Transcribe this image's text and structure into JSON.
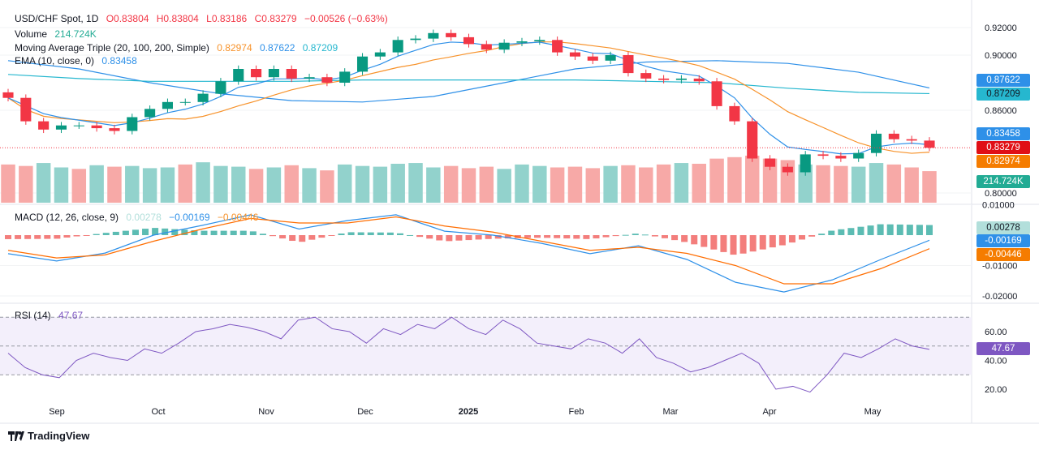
{
  "header": {
    "symbol": "USD/CHF Spot, 1D",
    "open": "O0.83804",
    "high": "H0.83804",
    "low": "L0.83186",
    "close": "C0.83279",
    "change": "−0.00526 (−0.63%)"
  },
  "legends": {
    "volume_label": "Volume",
    "volume_value": "214.724K",
    "ma_label": "Moving Average Triple (20, 100, 200, Simple)",
    "ma20_value": "0.82974",
    "ma100_value": "0.87622",
    "ma200_value": "0.87209",
    "ema_label": "EMA (10, close, 0)",
    "ema_value": "0.83458",
    "macd_label": "MACD (12, 26, close, 9)",
    "macd_hist_value": "0.00278",
    "macd_value": "−0.00169",
    "signal_value": "−0.00446",
    "rsi_label": "RSI (14)",
    "rsi_value": "47.67"
  },
  "tags": {
    "ma100": "0.87622",
    "ma200": "0.87209",
    "ema": "0.83458",
    "close": "0.83279",
    "ma20": "0.82974",
    "volume": "214.724K",
    "macd_hist": "0.00278",
    "macd": "-0.00169",
    "signal": "-0.00446",
    "rsi": "47.67"
  },
  "colors": {
    "up": "#089981",
    "down": "#f23645",
    "vol_up": "#92d2cc",
    "vol_down": "#f7a9a7",
    "ma20": "#f7922a",
    "ma100": "#2e90e8",
    "ma200": "#26b7cf",
    "ema": "#2e90e8",
    "macd": "#2962ff",
    "signal": "#ff6d00",
    "rsi": "#7e57c2",
    "rsi_band": "#f3effb"
  },
  "brand": "TradingView",
  "chart_data": [
    {
      "type": "candlestick",
      "title": "USD/CHF Spot, 1D",
      "x_ticks": [
        "Sep",
        "Oct",
        "Nov",
        "Dec",
        "2025",
        "Feb",
        "Mar",
        "Apr",
        "May"
      ],
      "y_ticks": [
        "0.92000",
        "0.90000",
        "0.86000",
        "0.80000"
      ],
      "ylim": [
        0.795,
        0.925
      ],
      "closes": [
        0.869,
        0.852,
        0.846,
        0.849,
        0.849,
        0.847,
        0.845,
        0.855,
        0.861,
        0.866,
        0.866,
        0.872,
        0.881,
        0.89,
        0.884,
        0.89,
        0.883,
        0.884,
        0.88,
        0.888,
        0.899,
        0.902,
        0.911,
        0.912,
        0.916,
        0.913,
        0.908,
        0.904,
        0.909,
        0.91,
        0.911,
        0.902,
        0.899,
        0.896,
        0.9,
        0.887,
        0.883,
        0.882,
        0.883,
        0.881,
        0.863,
        0.852,
        0.825,
        0.819,
        0.815,
        0.828,
        0.827,
        0.825,
        0.829,
        0.843,
        0.839,
        0.838,
        0.83279
      ],
      "sma100": [
        0.896,
        0.89,
        0.88,
        0.872,
        0.867,
        0.866,
        0.87,
        0.88,
        0.89,
        0.895,
        0.896,
        0.894,
        0.88762,
        0.87622
      ],
      "sma200": [
        0.886,
        0.883,
        0.881,
        0.881,
        0.881,
        0.882,
        0.882,
        0.882,
        0.882,
        0.881,
        0.88,
        0.876,
        0.873,
        0.87209
      ],
      "volume_k": [
        260,
        250,
        270,
        240,
        230,
        255,
        245,
        250,
        235,
        240,
        260,
        275,
        250,
        245,
        230,
        240,
        255,
        235,
        220,
        260,
        250,
        245,
        265,
        270,
        240,
        250,
        235,
        245,
        230,
        260,
        250,
        240,
        245,
        235,
        250,
        255,
        240,
        260,
        270,
        265,
        300,
        310,
        320,
        300,
        290,
        260,
        255,
        250,
        245,
        270,
        260,
        240,
        214.724
      ],
      "volume_up": [
        false,
        false,
        true,
        true,
        false,
        true,
        false,
        true,
        true,
        true,
        false,
        true,
        true,
        true,
        false,
        true,
        false,
        true,
        false,
        true,
        true,
        true,
        true,
        true,
        true,
        false,
        false,
        false,
        true,
        true,
        true,
        false,
        false,
        false,
        true,
        false,
        false,
        false,
        true,
        false,
        false,
        false,
        false,
        false,
        false,
        true,
        false,
        false,
        true,
        true,
        false,
        false,
        false
      ]
    },
    {
      "type": "line",
      "title": "MACD (12, 26, close, 9)",
      "y_ticks": [
        "0.01000",
        "-0.01000",
        "-0.02000"
      ],
      "ylim": [
        -0.0225,
        0.0105
      ],
      "macd": [
        -0.0061,
        -0.0085,
        -0.0059,
        0,
        0.0032,
        0.0067,
        0.002,
        0.0048,
        0.0067,
        0.0013,
        0,
        -0.0027,
        -0.0061,
        -0.0035,
        -0.008,
        -0.0155,
        -0.0187,
        -0.0147,
        -0.008,
        -0.00169
      ],
      "signal": [
        -0.005,
        -0.0075,
        -0.0065,
        -0.002,
        0.002,
        0.0055,
        0.004,
        0.004,
        0.006,
        0.003,
        0.001,
        -0.002,
        -0.005,
        -0.004,
        -0.006,
        -0.01,
        -0.016,
        -0.016,
        -0.011,
        -0.00446
      ]
    },
    {
      "type": "line",
      "title": "RSI (14)",
      "y_ticks": [
        "60.00",
        "40.00",
        "20.00"
      ],
      "ylim": [
        10,
        80
      ],
      "bands": [
        70,
        50,
        30
      ],
      "values": [
        45,
        35,
        30,
        28,
        40,
        45,
        42,
        40,
        48,
        45,
        52,
        60,
        62,
        65,
        63,
        60,
        55,
        68,
        70,
        62,
        60,
        52,
        62,
        58,
        65,
        62,
        70,
        62,
        58,
        68,
        62,
        52,
        50,
        48,
        55,
        52,
        45,
        55,
        42,
        38,
        32,
        35,
        40,
        45,
        38,
        20,
        22,
        18,
        30,
        45,
        42,
        48,
        55,
        50,
        47.67
      ]
    }
  ]
}
